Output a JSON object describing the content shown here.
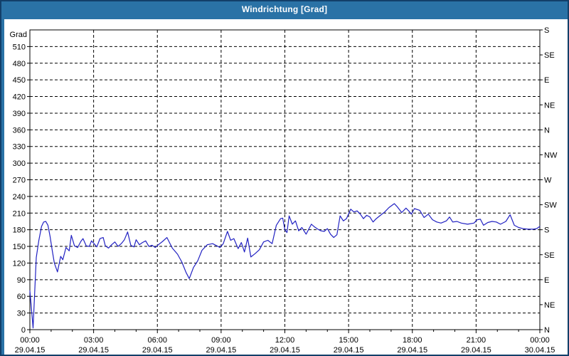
{
  "window": {
    "title": "Windrichtung [Grad]"
  },
  "colors": {
    "window_background": "#2a72a6",
    "window_border": "#123f69",
    "titlebar_text": "#ffffff",
    "panel_background": "#ffffff",
    "axis_and_grid": "#000000",
    "line": "#2121c2"
  },
  "chart_data": {
    "type": "line",
    "title": "Windrichtung [Grad]",
    "ylabel": "Grad",
    "ylim": [
      0,
      540
    ],
    "xlim_hours": [
      0,
      24
    ],
    "grid": {
      "show": true,
      "style": "dashed"
    },
    "y_axis_left": {
      "label": "Grad",
      "ticks": [
        0,
        30,
        60,
        90,
        120,
        150,
        180,
        210,
        240,
        270,
        300,
        330,
        360,
        390,
        420,
        450,
        480,
        510
      ]
    },
    "y_axis_right": {
      "ticks": [
        {
          "v": 0,
          "label": "N"
        },
        {
          "v": 45,
          "label": "NE"
        },
        {
          "v": 90,
          "label": "E"
        },
        {
          "v": 135,
          "label": "SE"
        },
        {
          "v": 180,
          "label": "S"
        },
        {
          "v": 225,
          "label": "SW"
        },
        {
          "v": 270,
          "label": "W"
        },
        {
          "v": 315,
          "label": "NW"
        },
        {
          "v": 360,
          "label": "N"
        },
        {
          "v": 405,
          "label": "NE"
        },
        {
          "v": 450,
          "label": "E"
        },
        {
          "v": 495,
          "label": "SE"
        },
        {
          "v": 540,
          "label": "S"
        }
      ]
    },
    "x_axis": {
      "minor_tick_every_hours": 1,
      "major_ticks": [
        {
          "hour": 0,
          "time": "00:00",
          "date": "29.04.15"
        },
        {
          "hour": 3,
          "time": "03:00",
          "date": "29.04.15"
        },
        {
          "hour": 6,
          "time": "06:00",
          "date": "29.04.15"
        },
        {
          "hour": 9,
          "time": "09:00",
          "date": "29.04.15"
        },
        {
          "hour": 12,
          "time": "12:00",
          "date": "29.04.15"
        },
        {
          "hour": 15,
          "time": "15:00",
          "date": "29.04.15"
        },
        {
          "hour": 18,
          "time": "18:00",
          "date": "29.04.15"
        },
        {
          "hour": 21,
          "time": "21:00",
          "date": "29.04.15"
        },
        {
          "hour": 24,
          "time": "00:00",
          "date": "30.04.15"
        }
      ]
    },
    "series": [
      {
        "name": "Windrichtung",
        "color": "#2121c2",
        "points": [
          [
            0,
            70
          ],
          [
            0.08,
            35
          ],
          [
            0.15,
            3
          ],
          [
            0.3,
            130
          ],
          [
            0.42,
            160
          ],
          [
            0.55,
            186
          ],
          [
            0.65,
            194
          ],
          [
            0.75,
            195
          ],
          [
            0.85,
            188
          ],
          [
            0.95,
            168
          ],
          [
            1.05,
            143
          ],
          [
            1.15,
            120
          ],
          [
            1.3,
            104
          ],
          [
            1.45,
            132
          ],
          [
            1.55,
            126
          ],
          [
            1.7,
            148
          ],
          [
            1.85,
            142
          ],
          [
            1.95,
            170
          ],
          [
            2.1,
            151
          ],
          [
            2.25,
            148
          ],
          [
            2.4,
            159
          ],
          [
            2.5,
            164
          ],
          [
            2.65,
            151
          ],
          [
            2.8,
            150
          ],
          [
            2.9,
            160
          ],
          [
            3.0,
            156
          ],
          [
            3.15,
            149
          ],
          [
            3.3,
            164
          ],
          [
            3.45,
            166
          ],
          [
            3.55,
            151
          ],
          [
            3.7,
            147
          ],
          [
            3.85,
            153
          ],
          [
            4.0,
            158
          ],
          [
            4.15,
            150
          ],
          [
            4.3,
            155
          ],
          [
            4.45,
            162
          ],
          [
            4.6,
            176
          ],
          [
            4.75,
            152
          ],
          [
            4.9,
            149
          ],
          [
            5.0,
            162
          ],
          [
            5.15,
            153
          ],
          [
            5.3,
            157
          ],
          [
            5.45,
            160
          ],
          [
            5.6,
            150
          ],
          [
            5.75,
            152
          ],
          [
            5.9,
            148
          ],
          [
            6.05,
            153
          ],
          [
            6.25,
            159
          ],
          [
            6.45,
            166
          ],
          [
            6.7,
            147
          ],
          [
            6.95,
            136
          ],
          [
            7.15,
            122
          ],
          [
            7.35,
            103
          ],
          [
            7.5,
            92
          ],
          [
            7.7,
            112
          ],
          [
            7.9,
            124
          ],
          [
            8.1,
            143
          ],
          [
            8.35,
            153
          ],
          [
            8.6,
            155
          ],
          [
            8.8,
            151
          ],
          [
            8.95,
            148
          ],
          [
            9.1,
            155
          ],
          [
            9.3,
            177
          ],
          [
            9.45,
            161
          ],
          [
            9.6,
            164
          ],
          [
            9.8,
            146
          ],
          [
            9.95,
            157
          ],
          [
            10.1,
            140
          ],
          [
            10.25,
            165
          ],
          [
            10.4,
            131
          ],
          [
            10.6,
            137
          ],
          [
            10.8,
            144
          ],
          [
            11.0,
            158
          ],
          [
            11.2,
            161
          ],
          [
            11.4,
            155
          ],
          [
            11.6,
            188
          ],
          [
            11.8,
            200
          ],
          [
            11.9,
            201
          ],
          [
            12.0,
            180
          ],
          [
            12.1,
            175
          ],
          [
            12.2,
            205
          ],
          [
            12.35,
            190
          ],
          [
            12.5,
            196
          ],
          [
            12.65,
            178
          ],
          [
            12.8,
            184
          ],
          [
            13.0,
            172
          ],
          [
            13.25,
            190
          ],
          [
            13.4,
            185
          ],
          [
            13.55,
            181
          ],
          [
            13.7,
            178
          ],
          [
            13.85,
            177
          ],
          [
            14.0,
            182
          ],
          [
            14.15,
            172
          ],
          [
            14.3,
            166
          ],
          [
            14.45,
            171
          ],
          [
            14.6,
            205
          ],
          [
            14.75,
            196
          ],
          [
            14.9,
            200
          ],
          [
            15.1,
            217
          ],
          [
            15.25,
            212
          ],
          [
            15.4,
            214
          ],
          [
            15.55,
            208
          ],
          [
            15.7,
            200
          ],
          [
            15.85,
            206
          ],
          [
            16.0,
            203
          ],
          [
            16.15,
            194
          ],
          [
            16.3,
            200
          ],
          [
            16.5,
            206
          ],
          [
            16.7,
            212
          ],
          [
            16.9,
            220
          ],
          [
            17.15,
            227
          ],
          [
            17.3,
            221
          ],
          [
            17.5,
            211
          ],
          [
            17.7,
            219
          ],
          [
            17.85,
            213
          ],
          [
            17.95,
            208
          ],
          [
            18.1,
            218
          ],
          [
            18.35,
            215
          ],
          [
            18.55,
            202
          ],
          [
            18.75,
            208
          ],
          [
            18.95,
            198
          ],
          [
            19.15,
            194
          ],
          [
            19.35,
            192
          ],
          [
            19.6,
            196
          ],
          [
            19.75,
            203
          ],
          [
            19.9,
            194
          ],
          [
            20.1,
            195
          ],
          [
            20.3,
            192
          ],
          [
            20.6,
            190
          ],
          [
            20.9,
            192
          ],
          [
            21.05,
            198
          ],
          [
            21.2,
            199
          ],
          [
            21.35,
            188
          ],
          [
            21.55,
            193
          ],
          [
            21.75,
            195
          ],
          [
            21.95,
            194
          ],
          [
            22.15,
            190
          ],
          [
            22.4,
            195
          ],
          [
            22.6,
            207
          ],
          [
            22.8,
            188
          ],
          [
            23.0,
            184
          ],
          [
            23.2,
            182
          ],
          [
            23.45,
            181
          ],
          [
            23.7,
            181
          ],
          [
            23.85,
            182
          ],
          [
            24.0,
            186
          ]
        ]
      }
    ]
  }
}
